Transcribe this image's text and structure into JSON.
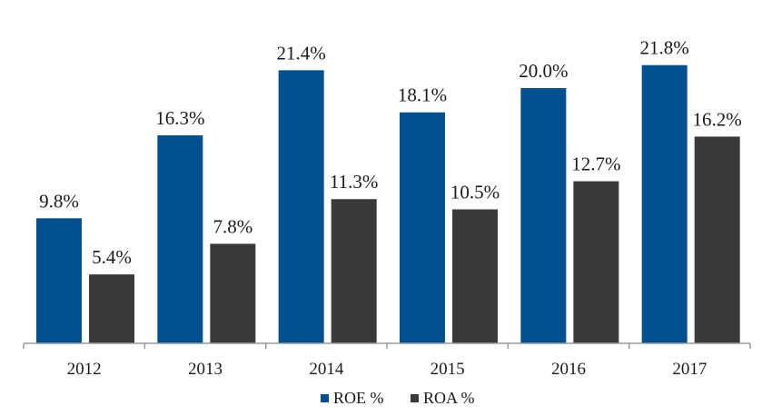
{
  "chart_data": {
    "type": "bar",
    "categories": [
      "2012",
      "2013",
      "2014",
      "2015",
      "2016",
      "2017"
    ],
    "series": [
      {
        "name": "ROE %",
        "values": [
          9.8,
          16.3,
          21.4,
          18.1,
          20.0,
          21.8
        ],
        "labels": [
          "9.8%",
          "16.3%",
          "21.4%",
          "18.1%",
          "20.0%",
          "21.8%"
        ],
        "color": "#00508f"
      },
      {
        "name": "ROA %",
        "values": [
          5.4,
          7.8,
          11.3,
          10.5,
          12.7,
          16.2
        ],
        "labels": [
          "5.4%",
          "7.8%",
          "11.3%",
          "10.5%",
          "12.7%",
          "16.2%"
        ],
        "color": "#3a3a3a"
      }
    ],
    "title": "",
    "xlabel": "",
    "ylabel": "",
    "ylim": [
      0,
      22
    ],
    "grid": false,
    "legend": "bottom-center"
  }
}
